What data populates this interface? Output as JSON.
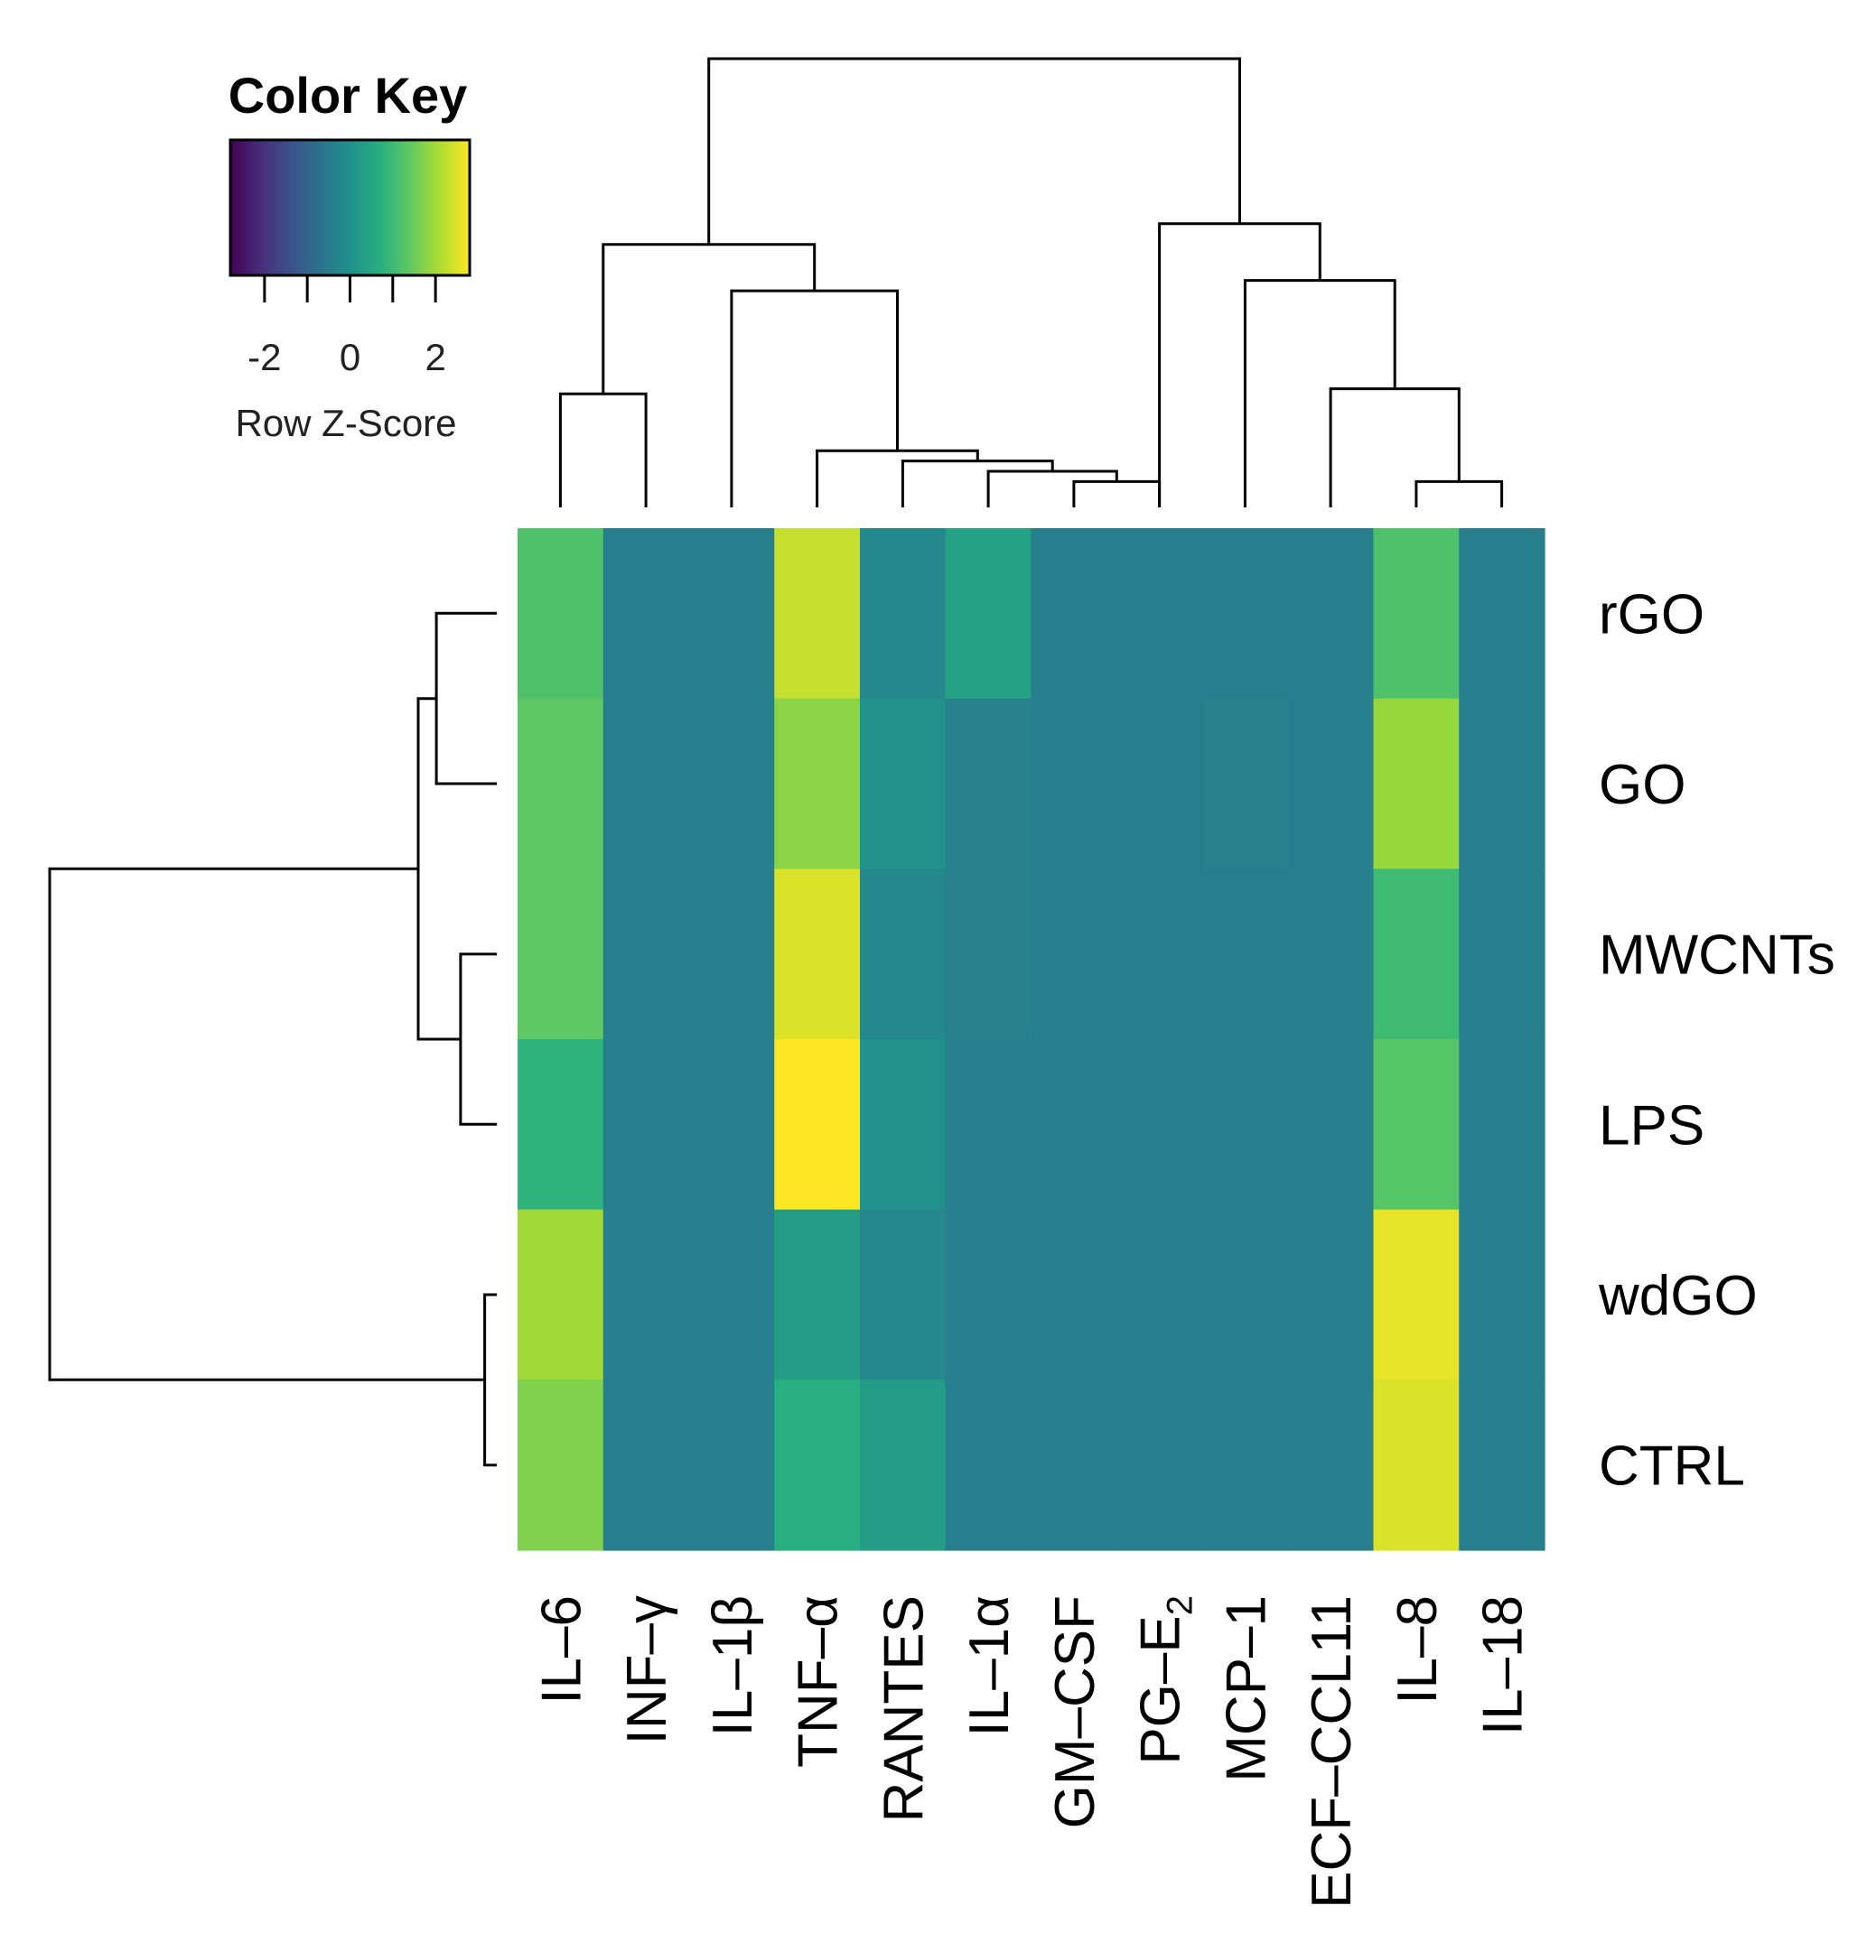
{
  "chart_data": {
    "type": "heatmap",
    "colormap": "viridis",
    "columns": [
      "IL–6",
      "INF–γ",
      "IL–1β",
      "TNF–α",
      "RANTES",
      "IL–1α",
      "GM–CSF",
      "PG–E",
      "MCP–1",
      "ECF–CCL11",
      "IL–8",
      "IL–18"
    ],
    "column_subscripts": [
      "",
      "",
      "",
      "",
      "",
      "",
      "",
      "2",
      "",
      "",
      "",
      ""
    ],
    "rows": [
      "rGO",
      "GO",
      "MWCNTs",
      "LPS",
      "wdGO",
      "CTRL"
    ],
    "values": [
      [
        1.2,
        -0.4,
        -0.4,
        2.3,
        -0.2,
        0.4,
        -0.4,
        -0.4,
        -0.4,
        -0.4,
        1.2,
        -0.4
      ],
      [
        1.4,
        -0.4,
        -0.4,
        1.8,
        0.0,
        -0.35,
        -0.4,
        -0.4,
        -0.35,
        -0.4,
        1.9,
        -0.4
      ],
      [
        1.4,
        -0.4,
        -0.4,
        2.5,
        -0.2,
        -0.35,
        -0.4,
        -0.4,
        -0.4,
        -0.4,
        1.0,
        -0.4
      ],
      [
        0.8,
        -0.4,
        -0.4,
        2.8,
        0.0,
        -0.4,
        -0.4,
        -0.4,
        -0.4,
        -0.4,
        1.3,
        -0.4
      ],
      [
        2.0,
        -0.4,
        -0.4,
        0.3,
        -0.2,
        -0.4,
        -0.4,
        -0.4,
        -0.4,
        -0.4,
        2.6,
        -0.4
      ],
      [
        1.7,
        -0.4,
        -0.4,
        0.7,
        0.3,
        -0.4,
        -0.4,
        -0.4,
        -0.4,
        -0.4,
        2.5,
        -0.4
      ]
    ],
    "color_key": {
      "title": "Color Key",
      "label": "Row Z-Score",
      "range": [
        -2.8,
        2.8
      ],
      "ticks": [
        -2,
        0,
        2
      ],
      "tick_labels": [
        "-2",
        "0",
        "2"
      ]
    },
    "column_dendrogram": {
      "merges": [
        {
          "a": "leaf:6",
          "b": "leaf:7",
          "height": 0.5
        },
        {
          "a": "leaf:5",
          "b": "node:0",
          "height": 0.7
        },
        {
          "a": "leaf:10",
          "b": "leaf:11",
          "height": 0.5
        },
        {
          "a": "leaf:4",
          "b": "node:1",
          "height": 0.9
        },
        {
          "a": "leaf:9",
          "b": "node:2",
          "height": 2.3
        },
        {
          "a": "leaf:8",
          "b": "node:4",
          "height": 4.4
        },
        {
          "a": "leaf:0",
          "b": "leaf:1",
          "height": 2.2
        },
        {
          "a": "leaf:3",
          "b": "node:3",
          "height": 1.1
        },
        {
          "a": "leaf:2",
          "b": "node:7",
          "height": 4.2
        },
        {
          "a": "leaf:7",
          "b": "node:5",
          "height": 5.5
        },
        {
          "a": "node:6",
          "b": "node:8",
          "height": 5.1
        },
        {
          "a": "node:10",
          "b": "node:9",
          "height": 8.7
        }
      ]
    },
    "row_dendrogram": {
      "merges": [
        {
          "a": "leaf:0",
          "b": "leaf:1",
          "height": 1.0
        },
        {
          "a": "leaf:2",
          "b": "leaf:3",
          "height": 0.6
        },
        {
          "a": "node:0",
          "b": "node:1",
          "height": 1.3
        },
        {
          "a": "leaf:4",
          "b": "leaf:5",
          "height": 0.2
        },
        {
          "a": "node:2",
          "b": "node:3",
          "height": 7.4
        }
      ]
    }
  }
}
